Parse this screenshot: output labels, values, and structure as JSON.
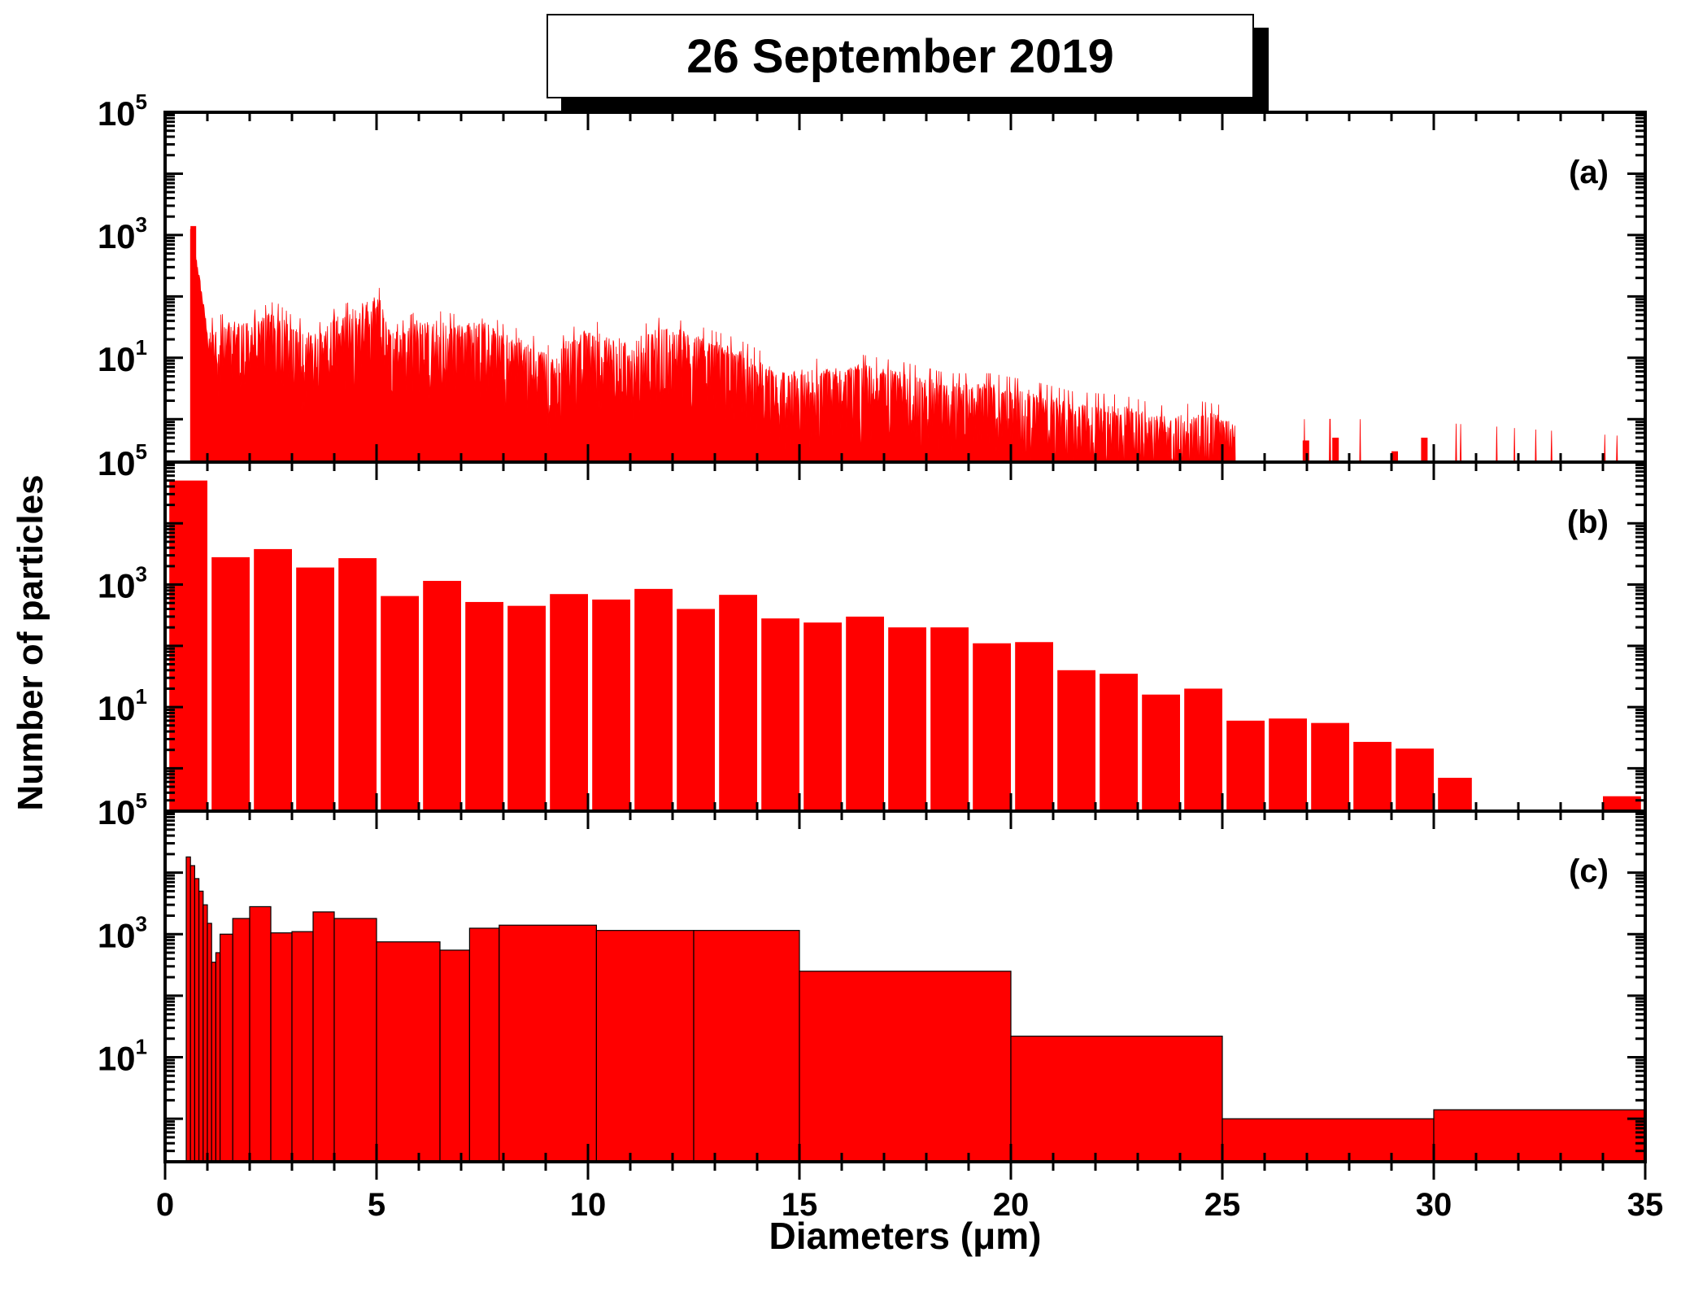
{
  "title": "26 September 2019",
  "colors": {
    "bar_fill": "#ff0000",
    "axis": "#000000"
  },
  "chart_data": [
    {
      "type": "bar",
      "panel": "(a)",
      "yscale": "log",
      "ylim": [
        0.2,
        100000
      ],
      "xlim": [
        0,
        35
      ],
      "y_tick_labels": [
        {
          "base": "10",
          "exp": "5",
          "value": 100000
        },
        {
          "base": "10",
          "exp": "3",
          "value": 1000
        },
        {
          "base": "10",
          "exp": "1",
          "value": 10
        }
      ],
      "envelope": {
        "x": [
          0.6,
          0.65,
          0.8,
          1.0,
          1.5,
          2.0,
          2.6,
          3.0,
          3.6,
          4.0,
          4.4,
          5.0,
          5.5,
          6.0,
          6.6,
          7.0,
          7.5,
          8.0,
          8.5,
          9.2,
          9.5,
          10.0,
          11.0,
          11.8,
          12.5,
          13.5,
          14.0,
          14.5,
          15.5,
          16.5,
          17.5,
          18.5,
          19.5,
          20.5,
          21.5,
          22.5,
          22.9,
          23.5,
          24.0,
          24.5,
          25.0,
          25.3,
          26.9,
          27.6,
          29.5,
          30.0,
          35.0
        ],
        "y": [
          1400,
          1000,
          250,
          30,
          40,
          40,
          60,
          35,
          25,
          45,
          60,
          120,
          25,
          45,
          40,
          35,
          45,
          25,
          20,
          10,
          20,
          30,
          20,
          35,
          25,
          15,
          10,
          6,
          7,
          8,
          6,
          4,
          4,
          3,
          2,
          1.8,
          1.6,
          1.2,
          1.2,
          1.4,
          1.2,
          0.8,
          0.5,
          0.5,
          0.5,
          0.45,
          0.25
        ]
      },
      "tallest_bar": {
        "x": 0.65,
        "y": 1400
      }
    },
    {
      "type": "bar",
      "panel": "(b)",
      "yscale": "log",
      "ylim": [
        0.2,
        100000
      ],
      "xlim": [
        0,
        35
      ],
      "y_tick_labels": [
        {
          "base": "10",
          "exp": "5",
          "value": 100000
        },
        {
          "base": "10",
          "exp": "3",
          "value": 1000
        },
        {
          "base": "10",
          "exp": "1",
          "value": 10
        }
      ],
      "bins": [
        {
          "x0": 0.1,
          "x1": 1.0,
          "y": 50000
        },
        {
          "x0": 1.1,
          "x1": 2.0,
          "y": 2800
        },
        {
          "x0": 2.1,
          "x1": 3.0,
          "y": 3800
        },
        {
          "x0": 3.1,
          "x1": 4.0,
          "y": 1900
        },
        {
          "x0": 4.1,
          "x1": 5.0,
          "y": 2700
        },
        {
          "x0": 5.1,
          "x1": 6.0,
          "y": 650
        },
        {
          "x0": 6.1,
          "x1": 7.0,
          "y": 1150
        },
        {
          "x0": 7.1,
          "x1": 8.0,
          "y": 520
        },
        {
          "x0": 8.1,
          "x1": 9.0,
          "y": 450
        },
        {
          "x0": 9.1,
          "x1": 10.0,
          "y": 700
        },
        {
          "x0": 10.1,
          "x1": 11.0,
          "y": 570
        },
        {
          "x0": 11.1,
          "x1": 12.0,
          "y": 850
        },
        {
          "x0": 12.1,
          "x1": 13.0,
          "y": 400
        },
        {
          "x0": 13.1,
          "x1": 14.0,
          "y": 680
        },
        {
          "x0": 14.1,
          "x1": 15.0,
          "y": 280
        },
        {
          "x0": 15.1,
          "x1": 16.0,
          "y": 240
        },
        {
          "x0": 16.1,
          "x1": 17.0,
          "y": 300
        },
        {
          "x0": 17.1,
          "x1": 18.0,
          "y": 200
        },
        {
          "x0": 18.1,
          "x1": 19.0,
          "y": 200
        },
        {
          "x0": 19.1,
          "x1": 20.0,
          "y": 110
        },
        {
          "x0": 20.1,
          "x1": 21.0,
          "y": 115
        },
        {
          "x0": 21.1,
          "x1": 22.0,
          "y": 40
        },
        {
          "x0": 22.1,
          "x1": 23.0,
          "y": 35
        },
        {
          "x0": 23.1,
          "x1": 24.0,
          "y": 16
        },
        {
          "x0": 24.1,
          "x1": 25.0,
          "y": 20
        },
        {
          "x0": 25.1,
          "x1": 26.0,
          "y": 6
        },
        {
          "x0": 26.1,
          "x1": 27.0,
          "y": 6.5
        },
        {
          "x0": 27.1,
          "x1": 28.0,
          "y": 5.5
        },
        {
          "x0": 28.1,
          "x1": 29.0,
          "y": 2.7
        },
        {
          "x0": 29.1,
          "x1": 30.0,
          "y": 2.1
        },
        {
          "x0": 30.1,
          "x1": 30.9,
          "y": 0.7
        },
        {
          "x0": 34.0,
          "x1": 34.9,
          "y": 0.35
        }
      ]
    },
    {
      "type": "bar",
      "panel": "(c)",
      "yscale": "log",
      "ylim": [
        0.2,
        100000
      ],
      "xlim": [
        0,
        35
      ],
      "xlabel": "Diameters (μm)",
      "x_ticks": [
        0,
        5,
        10,
        15,
        20,
        25,
        30,
        35
      ],
      "y_tick_labels": [
        {
          "base": "10",
          "exp": "5",
          "value": 100000
        },
        {
          "base": "10",
          "exp": "3",
          "value": 1000
        },
        {
          "base": "10",
          "exp": "1",
          "value": 10
        }
      ],
      "bins": [
        {
          "x0": 0.5,
          "x1": 0.6,
          "y": 18000
        },
        {
          "x0": 0.6,
          "x1": 0.7,
          "y": 13000
        },
        {
          "x0": 0.7,
          "x1": 0.8,
          "y": 8000
        },
        {
          "x0": 0.8,
          "x1": 0.9,
          "y": 5000
        },
        {
          "x0": 0.9,
          "x1": 1.0,
          "y": 3000
        },
        {
          "x0": 1.0,
          "x1": 1.1,
          "y": 1500
        },
        {
          "x0": 1.1,
          "x1": 1.2,
          "y": 350
        },
        {
          "x0": 1.2,
          "x1": 1.3,
          "y": 500
        },
        {
          "x0": 1.3,
          "x1": 1.6,
          "y": 1000
        },
        {
          "x0": 1.6,
          "x1": 2.0,
          "y": 1800
        },
        {
          "x0": 2.0,
          "x1": 2.5,
          "y": 2800
        },
        {
          "x0": 2.5,
          "x1": 3.0,
          "y": 1050
        },
        {
          "x0": 3.0,
          "x1": 3.5,
          "y": 1100
        },
        {
          "x0": 3.5,
          "x1": 4.0,
          "y": 2300
        },
        {
          "x0": 4.0,
          "x1": 5.0,
          "y": 1800
        },
        {
          "x0": 5.0,
          "x1": 6.5,
          "y": 750
        },
        {
          "x0": 6.5,
          "x1": 7.2,
          "y": 550
        },
        {
          "x0": 7.2,
          "x1": 7.9,
          "y": 1250
        },
        {
          "x0": 7.9,
          "x1": 10.2,
          "y": 1400
        },
        {
          "x0": 10.2,
          "x1": 12.5,
          "y": 1150
        },
        {
          "x0": 12.5,
          "x1": 15.0,
          "y": 1150
        },
        {
          "x0": 15.0,
          "x1": 20.0,
          "y": 250
        },
        {
          "x0": 20.0,
          "x1": 25.0,
          "y": 22
        },
        {
          "x0": 25.0,
          "x1": 30.0,
          "y": 1.0
        },
        {
          "x0": 30.0,
          "x1": 35.0,
          "y": 1.4
        }
      ]
    }
  ],
  "shared_ylabel": "Number of particles"
}
